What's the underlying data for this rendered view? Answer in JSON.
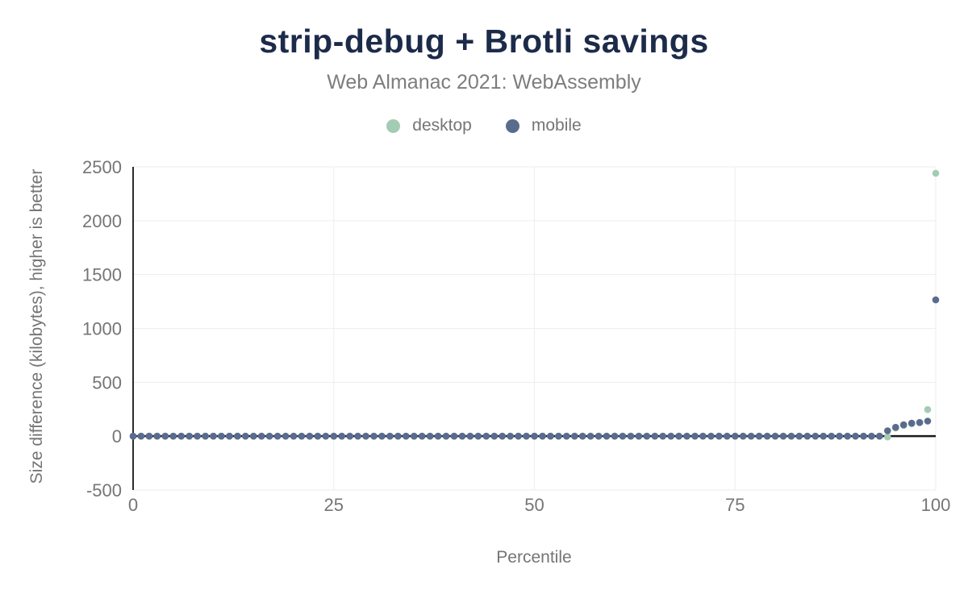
{
  "header": {
    "title": "strip-debug + Brotli savings",
    "subtitle": "Web Almanac 2021: WebAssembly"
  },
  "legend": {
    "items": [
      {
        "label": "desktop",
        "color": "#a4cbb4"
      },
      {
        "label": "mobile",
        "color": "#5a6c8d"
      }
    ]
  },
  "colors": {
    "background": "#ffffff",
    "title": "#1c2b4a",
    "muted_text": "#757575",
    "grid": "#ededed",
    "axis_line": "#2b2b2b",
    "zero_line": "#1a1a1a"
  },
  "chart_data": {
    "type": "scatter",
    "title": "strip-debug + Brotli savings",
    "subtitle": "Web Almanac 2021: WebAssembly",
    "xlabel": "Percentile",
    "ylabel": "Size difference (kilobytes), higher is better",
    "xlim": [
      0,
      100
    ],
    "ylim": [
      -500,
      2500
    ],
    "x_ticks": [
      0,
      25,
      50,
      75,
      100
    ],
    "y_ticks": [
      -500,
      0,
      500,
      1000,
      1500,
      2000,
      2500
    ],
    "grid": true,
    "legend_position": "top",
    "x": [
      0,
      1,
      2,
      3,
      4,
      5,
      6,
      7,
      8,
      9,
      10,
      11,
      12,
      13,
      14,
      15,
      16,
      17,
      18,
      19,
      20,
      21,
      22,
      23,
      24,
      25,
      26,
      27,
      28,
      29,
      30,
      31,
      32,
      33,
      34,
      35,
      36,
      37,
      38,
      39,
      40,
      41,
      42,
      43,
      44,
      45,
      46,
      47,
      48,
      49,
      50,
      51,
      52,
      53,
      54,
      55,
      56,
      57,
      58,
      59,
      60,
      61,
      62,
      63,
      64,
      65,
      66,
      67,
      68,
      69,
      70,
      71,
      72,
      73,
      74,
      75,
      76,
      77,
      78,
      79,
      80,
      81,
      82,
      83,
      84,
      85,
      86,
      87,
      88,
      89,
      90,
      91,
      92,
      93,
      94,
      95,
      96,
      97,
      98,
      99,
      100
    ],
    "series": [
      {
        "name": "desktop",
        "color": "#a4cbb4",
        "values": [
          0,
          0,
          0,
          0,
          0,
          0,
          0,
          0,
          0,
          0,
          0,
          0,
          0,
          0,
          0,
          0,
          0,
          0,
          0,
          0,
          0,
          0,
          0,
          0,
          0,
          0,
          0,
          0,
          0,
          0,
          0,
          0,
          0,
          0,
          0,
          0,
          0,
          0,
          0,
          0,
          0,
          0,
          0,
          0,
          0,
          0,
          0,
          0,
          0,
          0,
          0,
          0,
          0,
          0,
          0,
          0,
          0,
          0,
          0,
          0,
          0,
          0,
          0,
          0,
          0,
          0,
          0,
          0,
          0,
          0,
          0,
          0,
          0,
          0,
          0,
          0,
          0,
          0,
          0,
          0,
          0,
          0,
          0,
          0,
          0,
          0,
          0,
          0,
          0,
          0,
          0,
          0,
          0,
          0,
          -8,
          75,
          100,
          115,
          125,
          247,
          2440
        ]
      },
      {
        "name": "mobile",
        "color": "#5a6c8d",
        "values": [
          0,
          0,
          0,
          0,
          0,
          0,
          0,
          0,
          0,
          0,
          0,
          0,
          0,
          0,
          0,
          0,
          0,
          0,
          0,
          0,
          0,
          0,
          0,
          0,
          0,
          0,
          0,
          0,
          0,
          0,
          0,
          0,
          0,
          0,
          0,
          0,
          0,
          0,
          0,
          0,
          0,
          0,
          0,
          0,
          0,
          0,
          0,
          0,
          0,
          0,
          0,
          0,
          0,
          0,
          0,
          0,
          0,
          0,
          0,
          0,
          0,
          0,
          0,
          0,
          0,
          0,
          0,
          0,
          0,
          0,
          0,
          0,
          0,
          0,
          0,
          0,
          0,
          0,
          0,
          0,
          0,
          0,
          0,
          0,
          0,
          0,
          0,
          0,
          0,
          0,
          0,
          0,
          0,
          0,
          50,
          82,
          105,
          120,
          127,
          140,
          1265
        ]
      }
    ]
  }
}
